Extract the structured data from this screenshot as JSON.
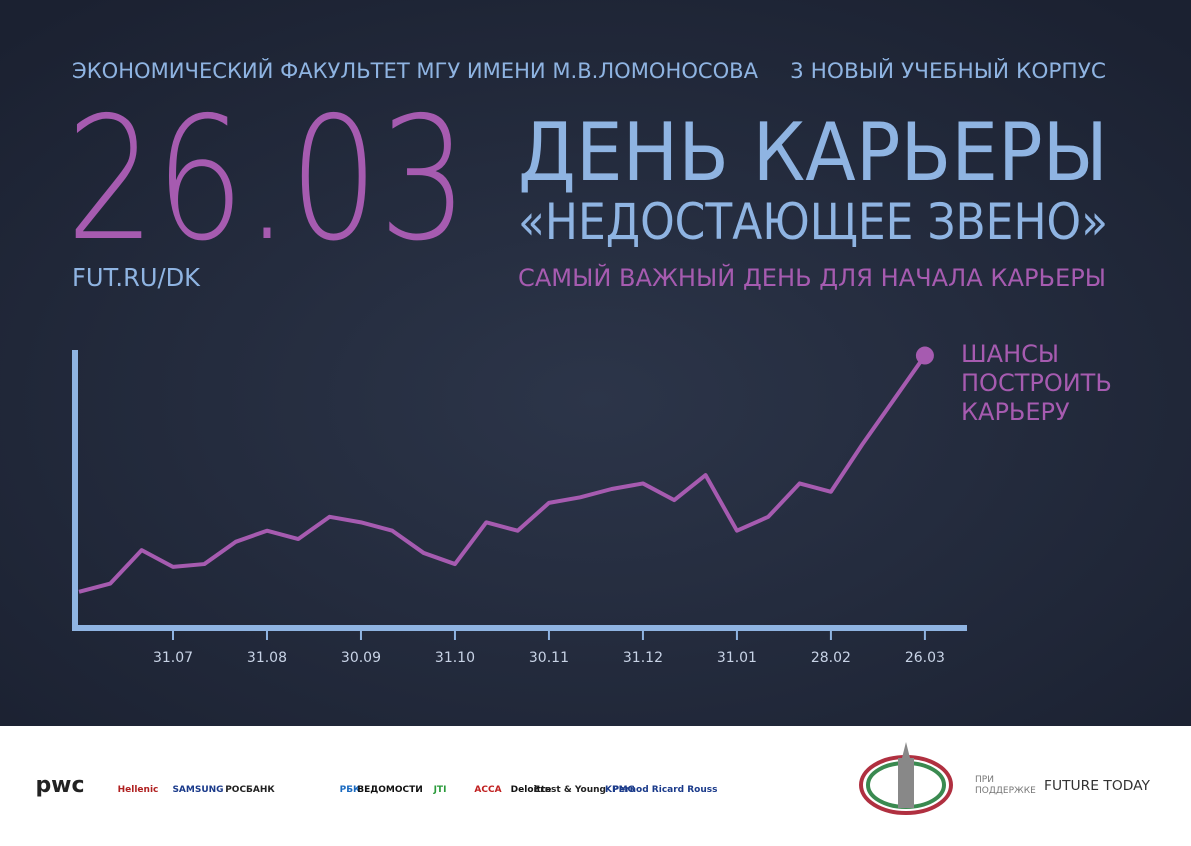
{
  "header": {
    "faculty": "ЭКОНОМИЧЕСКИЙ ФАКУЛЬТЕТ МГУ ИМЕНИ М.В.ЛОМОНОСОВА",
    "building": "3 НОВЫЙ УЧЕБНЫЙ КОРПУС",
    "date": "26.03",
    "url": "FUT.RU/DK",
    "title": "ДЕНЬ КАРЬЕРЫ",
    "subtitle": "«НЕДОСТАЮЩЕЕ ЗВЕНО»",
    "tagline": "САМЫЙ ВАЖНЫЙ ДЕНЬ ДЛЯ НАЧАЛА КАРЬЕРЫ"
  },
  "chart_data": {
    "type": "line",
    "categories": [
      null,
      null,
      null,
      "31.07",
      null,
      null,
      "31.08",
      null,
      null,
      "30.09",
      null,
      null,
      "31.10",
      null,
      null,
      "30.11",
      null,
      null,
      "31.12",
      null,
      null,
      "31.01",
      null,
      null,
      "28.02",
      null,
      null,
      "26.03"
    ],
    "values": [
      13,
      16,
      28,
      22,
      23,
      31,
      35,
      32,
      40,
      38,
      35,
      27,
      23,
      38,
      35,
      45,
      47,
      50,
      52,
      46,
      55,
      35,
      40,
      52,
      49,
      66,
      82,
      98
    ],
    "ylim": [
      0,
      100
    ],
    "color": "#a65bb0",
    "annotation": [
      "ШАНСЫ",
      "ПОСТРОИТЬ",
      "КАРЬЕРУ"
    ]
  },
  "footer": {
    "sponsors": [
      "pwc",
      "Hellenic",
      "SAMSUNG",
      "РОСБАНК",
      "РБК",
      "ВЕДОМОСТИ",
      "JTI",
      "ACCA",
      "Deloitte",
      "Ernst & Young",
      "KPMG",
      "Pernod Ricard Rouss"
    ],
    "support_label": [
      "ПРИ",
      "ПОДДЕРЖКЕ"
    ],
    "organizer": "FUTURE TODAY"
  }
}
